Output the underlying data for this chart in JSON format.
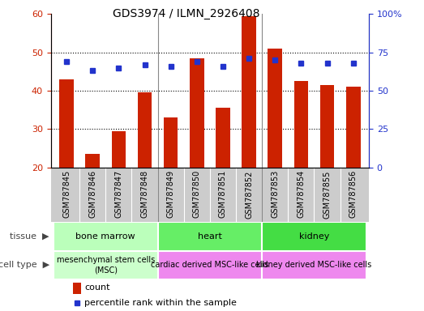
{
  "title": "GDS3974 / ILMN_2926408",
  "samples": [
    "GSM787845",
    "GSM787846",
    "GSM787847",
    "GSM787848",
    "GSM787849",
    "GSM787850",
    "GSM787851",
    "GSM787852",
    "GSM787853",
    "GSM787854",
    "GSM787855",
    "GSM787856"
  ],
  "count_values": [
    43,
    23.5,
    29.5,
    39.5,
    33,
    48.5,
    35.5,
    59.5,
    51,
    42.5,
    41.5,
    41
  ],
  "percentile_values": [
    69,
    63,
    65,
    67,
    66,
    69,
    66,
    71,
    70,
    68,
    68,
    68
  ],
  "ylim_left": [
    20,
    60
  ],
  "ylim_right": [
    0,
    100
  ],
  "yticks_left": [
    20,
    30,
    40,
    50,
    60
  ],
  "yticks_right": [
    0,
    25,
    50,
    75,
    100
  ],
  "bar_color": "#CC2200",
  "dot_color": "#2233CC",
  "tissue_groups": [
    {
      "label": "bone marrow",
      "start": 0,
      "end": 3,
      "color": "#BBFFBB"
    },
    {
      "label": "heart",
      "start": 4,
      "end": 7,
      "color": "#66EE66"
    },
    {
      "label": "kidney",
      "start": 8,
      "end": 11,
      "color": "#44DD44"
    }
  ],
  "celltype_groups": [
    {
      "label": "mesenchymal stem cells\n(MSC)",
      "start": 0,
      "end": 3,
      "color": "#CCFFCC"
    },
    {
      "label": "cardiac derived MSC-like cells",
      "start": 4,
      "end": 7,
      "color": "#EE88EE"
    },
    {
      "label": "kidney derived MSC-like cells",
      "start": 8,
      "end": 11,
      "color": "#EE88EE"
    }
  ],
  "xtick_bg": "#CCCCCC",
  "separator_color": "#888888",
  "left_label_color": "#444444",
  "title_fontsize": 10,
  "axis_fontsize": 8,
  "tick_fontsize": 7
}
